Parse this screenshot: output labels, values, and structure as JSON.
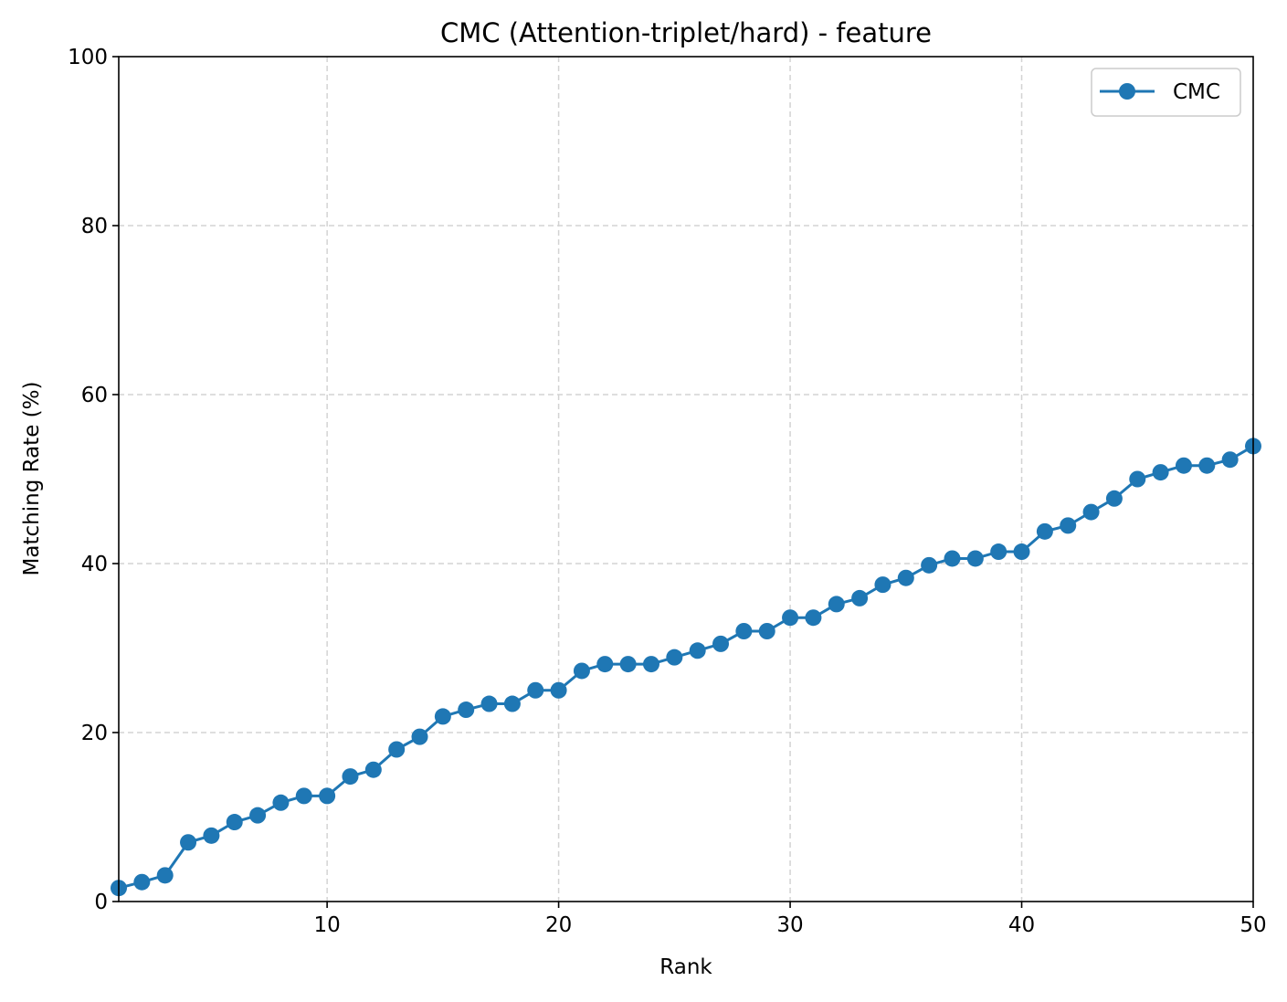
{
  "chart_data": {
    "type": "line",
    "title": "CMC (Attention-triplet/hard) - feature",
    "xlabel": "Rank",
    "ylabel": "Matching Rate (%)",
    "xlim": [
      1,
      50
    ],
    "ylim": [
      0,
      100
    ],
    "xticks": [
      10,
      20,
      30,
      40,
      50
    ],
    "yticks": [
      0,
      20,
      40,
      60,
      80,
      100
    ],
    "grid": true,
    "legend_position": "upper right",
    "series": [
      {
        "name": "CMC",
        "color": "#1f77b4",
        "marker": "circle",
        "x": [
          1,
          2,
          3,
          4,
          5,
          6,
          7,
          8,
          9,
          10,
          11,
          12,
          13,
          14,
          15,
          16,
          17,
          18,
          19,
          20,
          21,
          22,
          23,
          24,
          25,
          26,
          27,
          28,
          29,
          30,
          31,
          32,
          33,
          34,
          35,
          36,
          37,
          38,
          39,
          40,
          41,
          42,
          43,
          44,
          45,
          46,
          47,
          48,
          49,
          50
        ],
        "y": [
          1.6,
          2.3,
          3.1,
          7.0,
          7.8,
          9.4,
          10.2,
          11.7,
          12.5,
          12.5,
          14.8,
          15.6,
          18.0,
          19.5,
          21.9,
          22.7,
          23.4,
          23.4,
          25.0,
          25.0,
          27.3,
          28.1,
          28.1,
          28.1,
          28.9,
          29.7,
          30.5,
          32.0,
          32.0,
          33.6,
          33.6,
          35.2,
          35.9,
          37.5,
          38.3,
          39.8,
          40.6,
          40.6,
          41.4,
          41.4,
          43.8,
          44.5,
          46.1,
          47.7,
          50.0,
          50.8,
          51.6,
          51.6,
          52.3,
          53.9
        ]
      }
    ]
  }
}
